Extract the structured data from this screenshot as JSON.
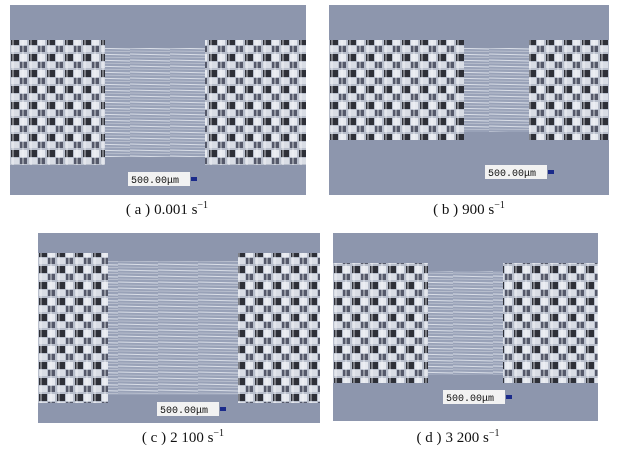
{
  "panels": [
    {
      "scale": "500.00μm",
      "label": "( a )",
      "rate": "0.001 s",
      "exponent": "−1"
    },
    {
      "scale": "500.00μm",
      "label": "( b )",
      "rate": "900 s",
      "exponent": "−1"
    },
    {
      "scale": "500.00μm",
      "label": "( c )",
      "rate": "2 100 s",
      "exponent": "−1"
    },
    {
      "scale": "500.00μm",
      "label": "( d )",
      "rate": "3 200 s",
      "exponent": "−1"
    }
  ]
}
